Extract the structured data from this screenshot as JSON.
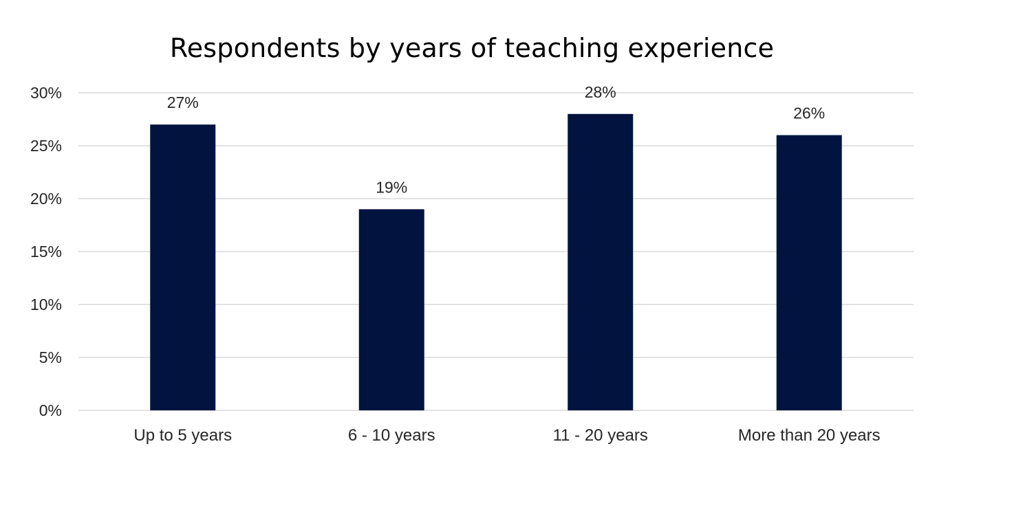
{
  "chart_data": {
    "type": "bar",
    "title": "Respondents by years of teaching experience",
    "xlabel": "",
    "ylabel": "",
    "categories": [
      "Up to 5 years",
      "6 - 10 years",
      "11 - 20 years",
      "More than 20 years"
    ],
    "values": [
      27,
      19,
      28,
      26
    ],
    "data_labels": [
      "27%",
      "19%",
      "28%",
      "26%"
    ],
    "ylim": [
      0,
      30
    ],
    "yticks": [
      0,
      5,
      10,
      15,
      20,
      25,
      30
    ],
    "ytick_labels": [
      "0%",
      "5%",
      "10%",
      "15%",
      "20%",
      "25%",
      "30%"
    ],
    "grid": true,
    "legend": "none",
    "bar_color": "#02133F",
    "grid_color": "#D9D9D9"
  }
}
